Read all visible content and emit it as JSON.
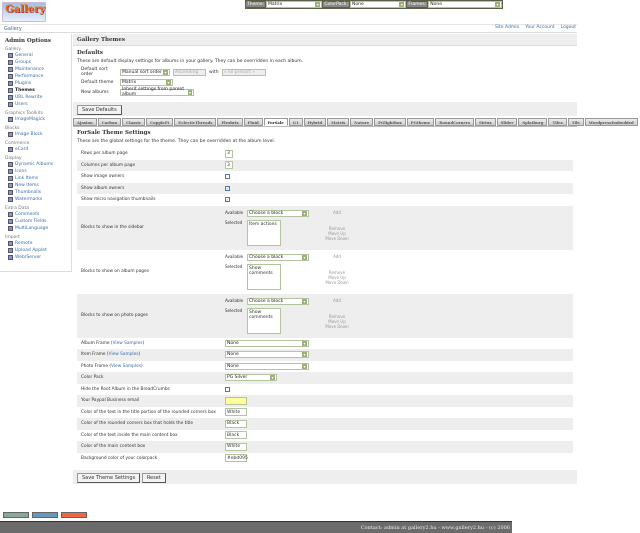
{
  "header": {
    "logo": "Gallery",
    "theme_label": "Theme:",
    "theme_value": "Matrix",
    "colorpack_label": "ColorPack:",
    "colorpack_value": "None",
    "frames_label": "Frames:",
    "frames_value": "None",
    "breadcrumb": "Gallery",
    "links": [
      "Site Admin",
      "Your Account",
      "Logout"
    ]
  },
  "sidebar": {
    "title": "Admin Options",
    "groups": [
      {
        "label": "Gallery",
        "items": [
          "General",
          "Groups",
          "Maintenance",
          "Performance",
          "Plugins",
          "Themes",
          "URL Rewrite",
          "Users"
        ],
        "current": "Themes"
      },
      {
        "label": "Graphics Toolkits",
        "items": [
          "ImageMagick"
        ]
      },
      {
        "label": "Blocks",
        "items": [
          "Image Block"
        ]
      },
      {
        "label": "Commerce",
        "items": [
          "eCard"
        ]
      },
      {
        "label": "Display",
        "items": [
          "Dynamic Albums",
          "Icons",
          "Link Items",
          "New Items",
          "Thumbnails",
          "Watermarks"
        ]
      },
      {
        "label": "Extra Data",
        "items": [
          "Comments",
          "Custom Fields",
          "MultiLanguage"
        ]
      },
      {
        "label": "Import",
        "items": [
          "Remote",
          "Upload Applet",
          "Web/Server"
        ]
      }
    ]
  },
  "main": {
    "title": "Gallery Themes",
    "defaults": {
      "heading": "Defaults",
      "description": "These are default display settings for albums in your gallery. They can be overridden in each album.",
      "sort_label": "Default sort order",
      "sort_value": "Manual sort order",
      "sort_dir": "Ascending",
      "with_label": "with",
      "presort": "« no presort »",
      "theme_label": "Default theme",
      "theme_value": "Matrix",
      "new_label": "New albums",
      "new_value": "Inherit settings from parent album",
      "save": "Save Defaults"
    },
    "tabs": [
      "Ajaxian",
      "Carbon",
      "Classic",
      "CoppleFt",
      "EclecticThreads",
      "Flexbrix",
      "Fluid",
      "ForSale",
      "G1",
      "Hybrid",
      "Matrix",
      "Nature",
      "PGlightbox",
      "PGtheme",
      "RoundCorners",
      "Siriux",
      "Slider",
      "Splatburg",
      "Tiles",
      "Tile",
      "WordpressEmbedded"
    ],
    "current_tab": "ForSale",
    "settings": {
      "heading": "ForSale Theme Settings",
      "description": "These are the global settings for the theme. They can be overridden at the album level.",
      "rows": [
        {
          "label": "Rows per album page",
          "type": "text",
          "value": "3"
        },
        {
          "label": "Columns per album page",
          "type": "text",
          "value": "3"
        },
        {
          "label": "Show image owners",
          "type": "check",
          "checked": false
        },
        {
          "label": "Show album owners",
          "type": "check",
          "checked": true
        },
        {
          "label": "Show micro navigation thumbnails",
          "type": "check",
          "checked": true
        },
        {
          "label": "Blocks to show in the sidebar",
          "type": "blocks",
          "available": "Choose a block",
          "selected": "Item actions"
        },
        {
          "label": "Blocks to show on album pages",
          "type": "blocks",
          "available": "Choose a block",
          "selected": "Show comments"
        },
        {
          "label": "Blocks to show on photo pages",
          "type": "blocks",
          "available": "Choose a block",
          "selected": "Show comments"
        },
        {
          "label": "Album Frame",
          "link": "View Samples",
          "type": "select",
          "value": "None"
        },
        {
          "label": "Item Frame",
          "link": "View Samples",
          "type": "select",
          "value": "None"
        },
        {
          "label": "Photo Frame",
          "link": "View Samples",
          "type": "select",
          "value": "None"
        },
        {
          "label": "Color Pack",
          "type": "select",
          "value": "PG Silver"
        },
        {
          "label": "Hide the Root Album in the BreadCrumbs",
          "type": "check",
          "checked": false
        },
        {
          "label": "Your Paypal Business email",
          "type": "text",
          "value": "",
          "highlight": "#ffff99"
        },
        {
          "label": "Color of the text in the title portion of the rounded corners box",
          "type": "text",
          "value": "White"
        },
        {
          "label": "Color of the rounded corners box that holds the title",
          "type": "text",
          "value": "Black"
        },
        {
          "label": "Color of the text inside the main content box",
          "type": "text",
          "value": "Black"
        },
        {
          "label": "Color of the main content box",
          "type": "text",
          "value": "White"
        },
        {
          "label": "Background color of your colorpack",
          "type": "text",
          "value": "#ebd095"
        }
      ],
      "available_label": "Available",
      "selected_label": "Selected",
      "add": "Add",
      "remove": "Remove",
      "move_up": "Move Up",
      "move_down": "Move Down",
      "save": "Save Theme Settings",
      "reset": "Reset"
    }
  },
  "footer": {
    "contact": "Contact: admin at gallery2.hu - www.gallery2.hu - (c) 2006"
  }
}
